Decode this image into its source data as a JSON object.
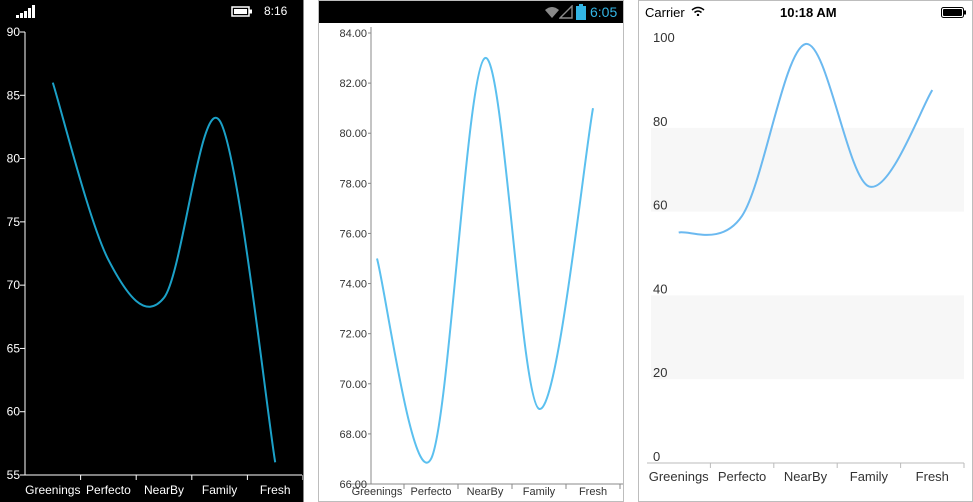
{
  "phones": [
    {
      "name": "windows",
      "status": {
        "time": "8:16"
      },
      "colors": {
        "background": "#000000",
        "line": "#1ba1c8",
        "text": "#ffffff",
        "axis": "#ffffff"
      }
    },
    {
      "name": "android",
      "status": {
        "time": "6:05"
      },
      "colors": {
        "background": "#ffffff",
        "line": "#5bc0ef",
        "text": "#333333",
        "axis": "#888888",
        "statusbar": "#000000",
        "accent": "#33b5e5"
      }
    },
    {
      "name": "ios",
      "status": {
        "carrier": "Carrier",
        "time": "10:18 AM"
      },
      "colors": {
        "background": "#ffffff",
        "line": "#6bb9f0",
        "text": "#333333",
        "band": "#f7f7f7",
        "axis": "#bbbbbb"
      }
    }
  ],
  "chart_data": [
    {
      "type": "line",
      "smooth": true,
      "categories": [
        "Greenings",
        "Perfecto",
        "NearBy",
        "Family",
        "Fresh"
      ],
      "series": [
        {
          "values": [
            86,
            72,
            69,
            83,
            56
          ]
        }
      ],
      "ylim": [
        55,
        90
      ],
      "yticks": [
        "90",
        "85",
        "80",
        "75",
        "70",
        "65",
        "60",
        "55"
      ],
      "grid": false,
      "legend": "none"
    },
    {
      "type": "line",
      "smooth": true,
      "categories": [
        "Greenings",
        "Perfecto",
        "NearBy",
        "Family",
        "Fresh"
      ],
      "series": [
        {
          "values": [
            75,
            67,
            83,
            69,
            81
          ]
        }
      ],
      "ylim": [
        66,
        84
      ],
      "yticks": [
        "84.00",
        "82.00",
        "80.00",
        "78.00",
        "76.00",
        "74.00",
        "72.00",
        "70.00",
        "68.00",
        "66.00"
      ],
      "grid": false,
      "legend": "none"
    },
    {
      "type": "line",
      "smooth": true,
      "categories": [
        "Greenings",
        "Perfecto",
        "NearBy",
        "Family",
        "Fresh"
      ],
      "series": [
        {
          "values": [
            55,
            59,
            100,
            66,
            89
          ]
        }
      ],
      "ylim": [
        0,
        100
      ],
      "yticks": [
        "100",
        "80",
        "60",
        "40",
        "20",
        "0"
      ],
      "grid": "alternating-bands",
      "legend": "none"
    }
  ]
}
